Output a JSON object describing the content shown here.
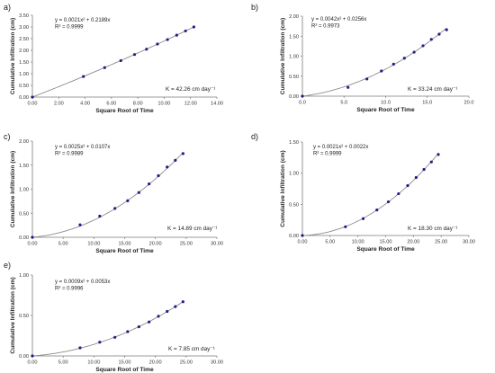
{
  "panels": [
    {
      "label": "a)",
      "chart_data": {
        "type": "scatter",
        "xlabel": "Square Root of Time",
        "ylabel": "Cumulative Infiltration (cm)",
        "xlim": [
          0,
          14
        ],
        "ylim": [
          0,
          3.5
        ],
        "x_ticks": [
          "0.00",
          "2.00",
          "4.00",
          "6.00",
          "8.00",
          "10.00",
          "12.00",
          "14.00"
        ],
        "y_ticks": [
          "0.00",
          "0.50",
          "1.00",
          "1.50",
          "2.00",
          "2.50",
          "3.00",
          "3.50"
        ],
        "equation": "y = 0.0021x² + 0.2189x",
        "r2": "R² = 0.9999",
        "k_label": "K = 42.26 cm day⁻¹",
        "fit": {
          "a": 0.0021,
          "b": 0.2189
        },
        "x": [
          0,
          3.87,
          5.48,
          6.71,
          7.75,
          8.66,
          9.49,
          10.25,
          10.95,
          11.62,
          12.25
        ],
        "y": [
          0,
          0.88,
          1.26,
          1.56,
          1.82,
          2.05,
          2.27,
          2.46,
          2.65,
          2.83,
          3.0
        ]
      }
    },
    {
      "label": "b)",
      "chart_data": {
        "type": "scatter",
        "xlabel": "Square Root of Time",
        "ylabel": "Cumulative Infiltration (cm)",
        "xlim": [
          0,
          20
        ],
        "ylim": [
          0,
          2.0
        ],
        "x_ticks": [
          "0.0",
          "5.0",
          "10.0",
          "15.0",
          "20.0"
        ],
        "y_ticks": [
          "0.00",
          "0.50",
          "1.00",
          "1.50",
          "2.00"
        ],
        "equation": "y = 0.0042x² + 0.0256x",
        "r2": "R² = 0.9973",
        "k_label": "K = 33.24 cm day⁻¹",
        "fit": {
          "a": 0.0042,
          "b": 0.0256
        },
        "x": [
          0,
          5.48,
          7.75,
          9.49,
          10.95,
          12.25,
          13.42,
          14.49,
          15.49,
          16.43,
          17.32
        ],
        "y": [
          0,
          0.22,
          0.43,
          0.63,
          0.8,
          0.95,
          1.1,
          1.26,
          1.42,
          1.55,
          1.66
        ]
      }
    },
    {
      "label": "c)",
      "chart_data": {
        "type": "scatter",
        "xlabel": "Square Root of Time",
        "ylabel": "Cumulative Infiltration (cm)",
        "xlim": [
          0,
          30
        ],
        "ylim": [
          0,
          2.0
        ],
        "x_ticks": [
          "0.00",
          "5.00",
          "10.00",
          "15.00",
          "20.00",
          "25.00",
          "30.00"
        ],
        "y_ticks": [
          "0.00",
          "0.50",
          "1.00",
          "1.50",
          "2.00"
        ],
        "equation": "y = 0.0025x² + 0.0107x",
        "r2": "R² = 0.9989",
        "k_label": "K = 14.89 cm day⁻¹",
        "fit": {
          "a": 0.0025,
          "b": 0.0107
        },
        "x": [
          0,
          7.75,
          10.95,
          13.42,
          15.49,
          17.32,
          18.97,
          20.49,
          21.91,
          23.24,
          24.49
        ],
        "y": [
          0,
          0.26,
          0.44,
          0.6,
          0.76,
          0.93,
          1.11,
          1.28,
          1.46,
          1.6,
          1.74
        ]
      }
    },
    {
      "label": "d)",
      "chart_data": {
        "type": "scatter",
        "xlabel": "Square Root of Time",
        "ylabel": "Cumulative Infiltration (cm)",
        "xlim": [
          0,
          30
        ],
        "ylim": [
          0,
          1.5
        ],
        "x_ticks": [
          "0.00",
          "5.00",
          "10.00",
          "15.00",
          "20.00",
          "25.00",
          "30.00"
        ],
        "y_ticks": [
          "0.00",
          "0.50",
          "1.00",
          "1.50"
        ],
        "equation": "y = 0.0021x² + 0.0022x",
        "r2": "R² = 0.9999",
        "k_label": "K = 18.30 cm day⁻¹",
        "fit": {
          "a": 0.0021,
          "b": 0.0022
        },
        "x": [
          0,
          7.75,
          10.95,
          13.42,
          15.49,
          17.32,
          18.97,
          20.49,
          21.91,
          23.24,
          24.49
        ],
        "y": [
          0,
          0.14,
          0.27,
          0.41,
          0.54,
          0.67,
          0.8,
          0.93,
          1.06,
          1.18,
          1.3
        ]
      }
    },
    {
      "label": "e)",
      "chart_data": {
        "type": "scatter",
        "xlabel": "Square Root of Time",
        "ylabel": "Cumulative Infiltration (cm)",
        "xlim": [
          0,
          30
        ],
        "ylim": [
          0,
          1.0
        ],
        "x_ticks": [
          "0.00",
          "5.00",
          "10.00",
          "15.00",
          "20.00",
          "25.00",
          "30.00"
        ],
        "y_ticks": [
          "0.00",
          "0.50",
          "1.00"
        ],
        "equation": "y = 0.0009x² + 0.0053x",
        "r2": "R² = 0.9996",
        "k_label": "K = 7.85 cm day⁻¹",
        "fit": {
          "a": 0.0009,
          "b": 0.0053
        },
        "x": [
          0,
          7.75,
          10.95,
          13.42,
          15.49,
          17.32,
          18.97,
          20.49,
          21.91,
          23.24,
          24.49
        ],
        "y": [
          0,
          0.1,
          0.17,
          0.23,
          0.3,
          0.36,
          0.42,
          0.49,
          0.55,
          0.61,
          0.67
        ]
      }
    }
  ],
  "colors": {
    "marker": "#1f1f8a",
    "fit_line": "#8c8c8c",
    "axis": "#7a7a7a"
  }
}
